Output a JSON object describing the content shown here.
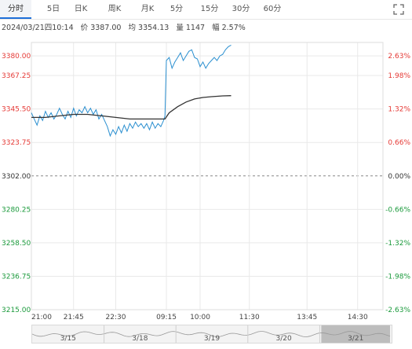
{
  "tabs": [
    {
      "label": "分时",
      "active": true
    },
    {
      "label": "5日",
      "active": false
    },
    {
      "label": "日K",
      "active": false
    },
    {
      "label": "周K",
      "active": false
    },
    {
      "label": "月K",
      "active": false
    },
    {
      "label": "5分",
      "active": false
    },
    {
      "label": "15分",
      "active": false
    },
    {
      "label": "30分",
      "active": false
    },
    {
      "label": "60分",
      "active": false
    }
  ],
  "expand_icon": "expand-icon",
  "info": {
    "datetime": "2024/03/21四10:14",
    "price": "价 3387.00",
    "avg": "均 3354.13",
    "vol": "量 1147",
    "change": "幅 2.57%"
  },
  "colors": {
    "up": "#e53935",
    "down": "#1b9a3c",
    "price_line": "#2a8fd0",
    "avg_line": "#333333",
    "grid": "#e9e9e9"
  },
  "chart_data": {
    "type": "line",
    "base_price": 3302.0,
    "ylim": [
      3215.0,
      3388.75
    ],
    "y_ticks_left": [
      "3380.00",
      "3367.25",
      "3345.50",
      "3323.75",
      "3302.00",
      "3280.25",
      "3258.50",
      "3236.75",
      "3215.00"
    ],
    "y_ticks_right": [
      "2.63%",
      "1.98%",
      "1.32%",
      "0.66%",
      "0.00%",
      "-0.66%",
      "-1.32%",
      "-1.98%",
      "-2.63%"
    ],
    "x_ticks": [
      "21:00",
      "21:45",
      "22:30",
      "09:15",
      "10:00",
      "11:30",
      "13:45",
      "14:30"
    ],
    "series": [
      {
        "role": "price",
        "points": [
          [
            0,
            3343
          ],
          [
            2,
            3339
          ],
          [
            4,
            3335
          ],
          [
            6,
            3341
          ],
          [
            8,
            3338
          ],
          [
            10,
            3344
          ],
          [
            12,
            3340
          ],
          [
            14,
            3343
          ],
          [
            16,
            3339
          ],
          [
            18,
            3342
          ],
          [
            20,
            3346
          ],
          [
            22,
            3342
          ],
          [
            24,
            3339
          ],
          [
            26,
            3344
          ],
          [
            28,
            3340
          ],
          [
            30,
            3346
          ],
          [
            32,
            3341
          ],
          [
            34,
            3345
          ],
          [
            36,
            3343
          ],
          [
            38,
            3347
          ],
          [
            40,
            3343
          ],
          [
            42,
            3346
          ],
          [
            44,
            3342
          ],
          [
            46,
            3345
          ],
          [
            48,
            3339
          ],
          [
            50,
            3342
          ],
          [
            52,
            3338
          ],
          [
            54,
            3334
          ],
          [
            56,
            3328
          ],
          [
            58,
            3332
          ],
          [
            60,
            3329
          ],
          [
            62,
            3334
          ],
          [
            64,
            3330
          ],
          [
            66,
            3335
          ],
          [
            68,
            3331
          ],
          [
            70,
            3336
          ],
          [
            72,
            3333
          ],
          [
            74,
            3337
          ],
          [
            76,
            3334
          ],
          [
            78,
            3336
          ],
          [
            80,
            3333
          ],
          [
            82,
            3336
          ],
          [
            84,
            3332
          ],
          [
            86,
            3337
          ],
          [
            88,
            3333
          ],
          [
            90,
            3336
          ],
          [
            92,
            3334
          ],
          [
            94,
            3338
          ],
          [
            95,
            3341
          ],
          [
            96,
            3377
          ],
          [
            98,
            3379
          ],
          [
            100,
            3372
          ],
          [
            102,
            3376
          ],
          [
            104,
            3379
          ],
          [
            106,
            3382
          ],
          [
            108,
            3377
          ],
          [
            110,
            3380
          ],
          [
            112,
            3383
          ],
          [
            114,
            3384
          ],
          [
            116,
            3379
          ],
          [
            118,
            3378
          ],
          [
            120,
            3373
          ],
          [
            122,
            3376
          ],
          [
            124,
            3372
          ],
          [
            126,
            3375
          ],
          [
            128,
            3377
          ],
          [
            130,
            3379
          ],
          [
            132,
            3377
          ],
          [
            134,
            3380
          ],
          [
            136,
            3381
          ],
          [
            138,
            3384
          ],
          [
            140,
            3386
          ],
          [
            142,
            3387
          ]
        ]
      },
      {
        "role": "avg",
        "points": [
          [
            0,
            3340
          ],
          [
            10,
            3340
          ],
          [
            20,
            3341
          ],
          [
            30,
            3342
          ],
          [
            40,
            3342
          ],
          [
            50,
            3341
          ],
          [
            60,
            3340
          ],
          [
            70,
            3339
          ],
          [
            80,
            3339
          ],
          [
            90,
            3339
          ],
          [
            95,
            3339
          ],
          [
            98,
            3343
          ],
          [
            104,
            3347
          ],
          [
            110,
            3350
          ],
          [
            116,
            3352
          ],
          [
            122,
            3353
          ],
          [
            128,
            3353.5
          ],
          [
            136,
            3354
          ],
          [
            142,
            3354.13
          ]
        ]
      }
    ],
    "x_domain": [
      0,
      250
    ]
  },
  "navigator": {
    "dates": [
      "3/15",
      "3/18",
      "3/19",
      "3/20",
      "3/21"
    ]
  }
}
